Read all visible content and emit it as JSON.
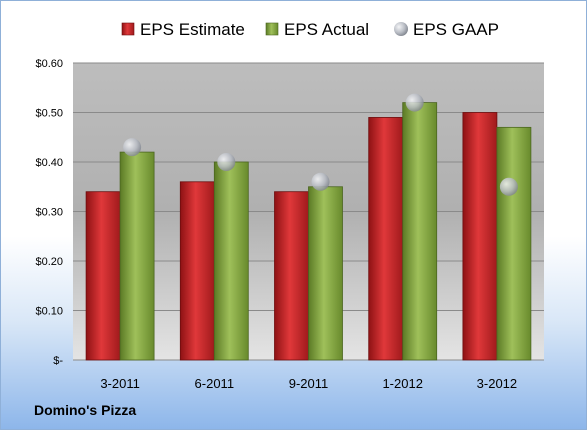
{
  "chart_data": {
    "type": "bar",
    "title": "",
    "xlabel": "",
    "ylabel": "",
    "categories": [
      "3-2011",
      "6-2011",
      "9-2011",
      "1-2012",
      "3-2012"
    ],
    "series": [
      {
        "name": "EPS Estimate",
        "kind": "bar",
        "color": "#c0282a",
        "values": [
          0.34,
          0.36,
          0.34,
          0.49,
          0.5
        ]
      },
      {
        "name": "EPS Actual",
        "kind": "bar",
        "color": "#7f9f3f",
        "values": [
          0.42,
          0.4,
          0.35,
          0.52,
          0.47
        ]
      },
      {
        "name": "EPS GAAP",
        "kind": "scatter",
        "color": "#b8bcc4",
        "values": [
          0.43,
          0.4,
          0.36,
          0.52,
          0.35
        ]
      }
    ],
    "ylim": [
      0,
      0.6
    ],
    "yticks": [
      0,
      0.1,
      0.2,
      0.3,
      0.4,
      0.5,
      0.6
    ],
    "ytick_labels": [
      "$-",
      "$0.10",
      "$0.20",
      "$0.30",
      "$0.40",
      "$0.50",
      "$0.60"
    ],
    "grid": true,
    "legend": "top"
  },
  "footer": {
    "company": "Domino's Pizza"
  }
}
